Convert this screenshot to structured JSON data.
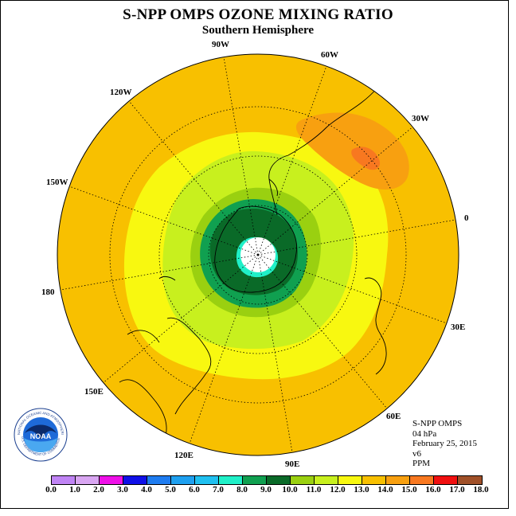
{
  "header": {
    "title": "S-NPP OMPS OZONE MIXING RATIO",
    "subtitle": "Southern Hemisphere"
  },
  "longitude_labels": {
    "lon_90w": "90W",
    "lon_60w": "60W",
    "lon_120w": "120W",
    "lon_30w": "30W",
    "lon_150w": "150W",
    "lon_0": "0",
    "lon_180": "180",
    "lon_30e": "30E",
    "lon_150e": "150E",
    "lon_60e": "60E",
    "lon_120e": "120E",
    "lon_90e": "90E"
  },
  "info": {
    "instrument": "S-NPP OMPS",
    "level": "04 hPa",
    "date": "February 25, 2015",
    "version": "v6",
    "units": "PPM"
  },
  "logo": {
    "text": "NOAA",
    "ring_text": "NATIONAL OCEANIC AND ATMOSPHERIC ADMINISTRATION",
    "ring_text_bottom": "U.S. DEPARTMENT OF COMMERCE"
  },
  "colorbar": {
    "colors": [
      "#c084f5",
      "#d9a6f2",
      "#ef10e8",
      "#1010e8",
      "#1e7cf0",
      "#1ea0f0",
      "#20c0f0",
      "#20f0c8",
      "#10a050",
      "#0a6a28",
      "#9ad010",
      "#c8f01e",
      "#f8f810",
      "#f8c000",
      "#f8a010",
      "#f87820",
      "#f01010",
      "#a05028"
    ],
    "ticks": [
      "0.0",
      "1.0",
      "2.0",
      "3.0",
      "4.0",
      "5.0",
      "6.0",
      "7.0",
      "8.0",
      "9.0",
      "10.0",
      "11.0",
      "12.0",
      "13.0",
      "14.0",
      "15.0",
      "16.0",
      "17.0",
      "18.0"
    ]
  },
  "map_colors": {
    "background_level": "#f8c000",
    "yellow": "#f8f810",
    "light_green": "#c8f01e",
    "green": "#9ad010",
    "mid_green": "#10a050",
    "dark_green": "#0a6a28",
    "cyan": "#20f0c8",
    "orange": "#f8a010",
    "dark_orange": "#f87820"
  }
}
